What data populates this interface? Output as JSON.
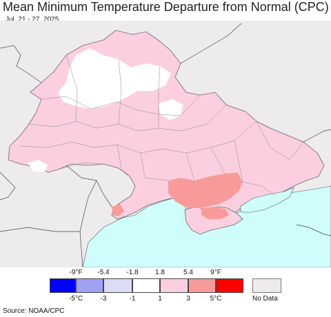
{
  "title": "Mean Minimum Temperature Departure from Normal (CPC)",
  "subtitle": "Jul. 21 - 27, 2025",
  "legend": {
    "fahrenheit_ticks": [
      "-9°F",
      "-5.4",
      "-1.8",
      "1.8",
      "5.4",
      "9°F"
    ],
    "celsius_ticks": [
      "-5°C",
      "-3",
      "-1",
      "1",
      "3",
      "5°C"
    ],
    "bins": [
      {
        "color": "#0000ff"
      },
      {
        "color": "#a0a0f5"
      },
      {
        "color": "#dcdcf8"
      },
      {
        "color": "#ffffff"
      },
      {
        "color": "#fccfe0"
      },
      {
        "color": "#f99a9a"
      },
      {
        "color": "#ff0000"
      }
    ],
    "nodata_label": "No Data",
    "nodata_color": "#eeebed"
  },
  "source": "Source: NOAA/CPC",
  "colors": {
    "no_data_land": "#eeebed",
    "sea": "#cffdfc",
    "pink": "#fccfe0",
    "warm": "#f99a9a",
    "neutral": "#ffffff",
    "cool": "#dcdcf8"
  }
}
